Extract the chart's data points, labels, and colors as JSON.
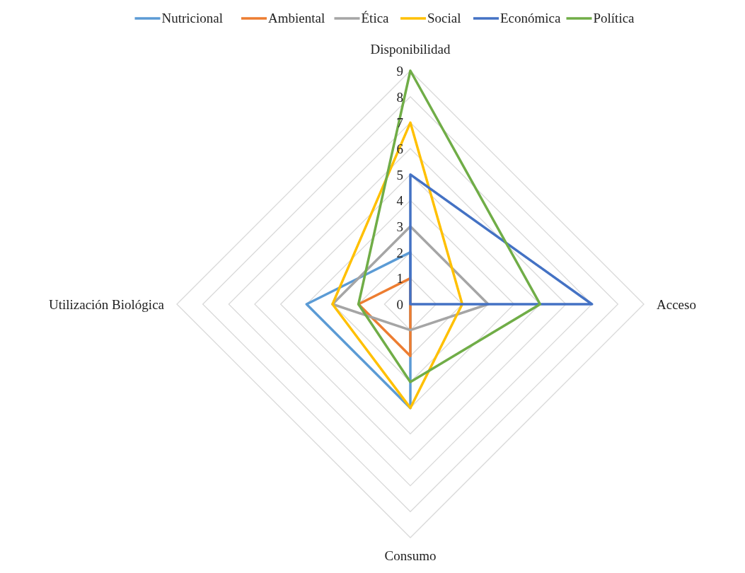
{
  "chart_data": {
    "type": "radar",
    "categories": [
      "Disponibilidad",
      "Acceso",
      "Consumo",
      "Utilización Biológica"
    ],
    "ylim": [
      0,
      9
    ],
    "yticks": [
      0,
      1,
      2,
      3,
      4,
      5,
      6,
      7,
      8,
      9
    ],
    "grid": true,
    "legend": "top",
    "marker": "none",
    "line_style": "solid",
    "series": [
      {
        "name": "Nutricional",
        "color": "#5b9bd5",
        "values": [
          2,
          0,
          4,
          4
        ]
      },
      {
        "name": "Ambiental",
        "color": "#ed7d31",
        "values": [
          1,
          0,
          2,
          2
        ]
      },
      {
        "name": "Ética",
        "color": "#a5a5a5",
        "values": [
          3,
          3,
          1,
          3
        ]
      },
      {
        "name": "Social",
        "color": "#ffc000",
        "values": [
          7,
          2,
          4,
          3
        ]
      },
      {
        "name": "Económica",
        "color": "#4472c4",
        "values": [
          5,
          7,
          0,
          0
        ]
      },
      {
        "name": "Política",
        "color": "#70ad47",
        "values": [
          9,
          5,
          3,
          2
        ]
      }
    ]
  }
}
